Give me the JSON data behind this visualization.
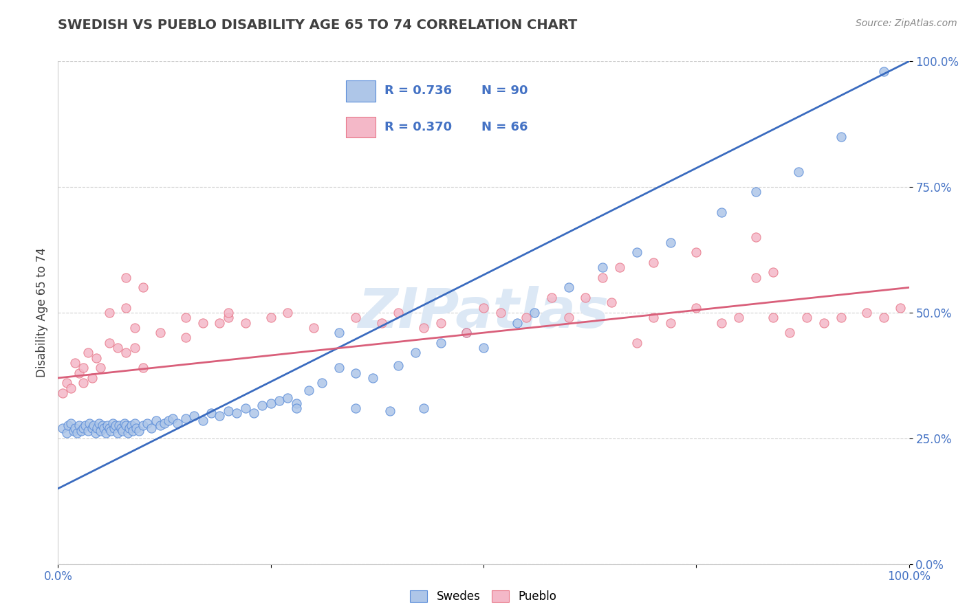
{
  "title": "SWEDISH VS PUEBLO DISABILITY AGE 65 TO 74 CORRELATION CHART",
  "source_text": "Source: ZipAtlas.com",
  "ylabel": "Disability Age 65 to 74",
  "legend_labels": [
    "Swedes",
    "Pueblo"
  ],
  "legend_r_values": [
    "R = 0.736",
    "N = 90",
    "R = 0.370",
    "N = 66"
  ],
  "blue_color": "#aec6e8",
  "pink_color": "#f4b8c8",
  "blue_edge_color": "#5b8dd9",
  "pink_edge_color": "#e8788a",
  "blue_line_color": "#3a6bbf",
  "pink_line_color": "#d95f7a",
  "background_color": "#ffffff",
  "grid_color": "#d0d0d0",
  "title_color": "#404040",
  "tick_color": "#4472c4",
  "watermark_color": "#dce8f5",
  "source_color": "#888888",
  "xlim": [
    0.0,
    1.0
  ],
  "ylim": [
    0.0,
    1.0
  ],
  "blue_scatter_x": [
    0.005,
    0.01,
    0.012,
    0.015,
    0.018,
    0.02,
    0.022,
    0.025,
    0.027,
    0.03,
    0.032,
    0.035,
    0.037,
    0.04,
    0.042,
    0.044,
    0.046,
    0.048,
    0.05,
    0.052,
    0.054,
    0.056,
    0.058,
    0.06,
    0.062,
    0.064,
    0.066,
    0.068,
    0.07,
    0.072,
    0.074,
    0.076,
    0.078,
    0.08,
    0.082,
    0.084,
    0.086,
    0.088,
    0.09,
    0.092,
    0.095,
    0.1,
    0.105,
    0.11,
    0.115,
    0.12,
    0.125,
    0.13,
    0.135,
    0.14,
    0.15,
    0.16,
    0.17,
    0.18,
    0.19,
    0.2,
    0.21,
    0.22,
    0.23,
    0.24,
    0.25,
    0.26,
    0.27,
    0.28,
    0.295,
    0.31,
    0.33,
    0.35,
    0.37,
    0.4,
    0.42,
    0.45,
    0.48,
    0.33,
    0.28,
    0.35,
    0.39,
    0.43,
    0.5,
    0.54,
    0.56,
    0.6,
    0.64,
    0.68,
    0.72,
    0.78,
    0.82,
    0.87,
    0.92,
    0.97
  ],
  "blue_scatter_y": [
    0.27,
    0.26,
    0.275,
    0.28,
    0.265,
    0.27,
    0.26,
    0.275,
    0.265,
    0.27,
    0.275,
    0.265,
    0.28,
    0.27,
    0.275,
    0.26,
    0.27,
    0.28,
    0.265,
    0.275,
    0.27,
    0.26,
    0.275,
    0.27,
    0.265,
    0.28,
    0.27,
    0.275,
    0.26,
    0.275,
    0.27,
    0.265,
    0.28,
    0.275,
    0.26,
    0.27,
    0.275,
    0.265,
    0.28,
    0.27,
    0.265,
    0.275,
    0.28,
    0.27,
    0.285,
    0.275,
    0.28,
    0.285,
    0.29,
    0.28,
    0.29,
    0.295,
    0.285,
    0.3,
    0.295,
    0.305,
    0.3,
    0.31,
    0.3,
    0.315,
    0.32,
    0.325,
    0.33,
    0.32,
    0.345,
    0.36,
    0.39,
    0.38,
    0.37,
    0.395,
    0.42,
    0.44,
    0.46,
    0.46,
    0.31,
    0.31,
    0.305,
    0.31,
    0.43,
    0.48,
    0.5,
    0.55,
    0.59,
    0.62,
    0.64,
    0.7,
    0.74,
    0.78,
    0.85,
    0.98
  ],
  "pink_scatter_x": [
    0.005,
    0.01,
    0.015,
    0.02,
    0.025,
    0.03,
    0.035,
    0.04,
    0.045,
    0.05,
    0.06,
    0.07,
    0.08,
    0.09,
    0.1,
    0.08,
    0.09,
    0.12,
    0.15,
    0.17,
    0.19,
    0.2,
    0.22,
    0.25,
    0.27,
    0.3,
    0.35,
    0.38,
    0.4,
    0.43,
    0.45,
    0.48,
    0.5,
    0.52,
    0.55,
    0.58,
    0.6,
    0.62,
    0.65,
    0.68,
    0.7,
    0.72,
    0.75,
    0.78,
    0.8,
    0.82,
    0.84,
    0.86,
    0.88,
    0.9,
    0.92,
    0.95,
    0.97,
    0.99,
    0.64,
    0.66,
    0.7,
    0.75,
    0.82,
    0.84,
    0.03,
    0.06,
    0.08,
    0.1,
    0.15,
    0.2
  ],
  "pink_scatter_y": [
    0.34,
    0.36,
    0.35,
    0.4,
    0.38,
    0.36,
    0.42,
    0.37,
    0.41,
    0.39,
    0.44,
    0.43,
    0.42,
    0.43,
    0.39,
    0.51,
    0.47,
    0.46,
    0.45,
    0.48,
    0.48,
    0.49,
    0.48,
    0.49,
    0.5,
    0.47,
    0.49,
    0.48,
    0.5,
    0.47,
    0.48,
    0.46,
    0.51,
    0.5,
    0.49,
    0.53,
    0.49,
    0.53,
    0.52,
    0.44,
    0.49,
    0.48,
    0.51,
    0.48,
    0.49,
    0.65,
    0.49,
    0.46,
    0.49,
    0.48,
    0.49,
    0.5,
    0.49,
    0.51,
    0.57,
    0.59,
    0.6,
    0.62,
    0.57,
    0.58,
    0.39,
    0.5,
    0.57,
    0.55,
    0.49,
    0.5
  ],
  "blue_trend": [
    0.0,
    1.0,
    0.15,
    1.0
  ],
  "pink_trend": [
    0.0,
    1.0,
    0.37,
    0.55
  ]
}
